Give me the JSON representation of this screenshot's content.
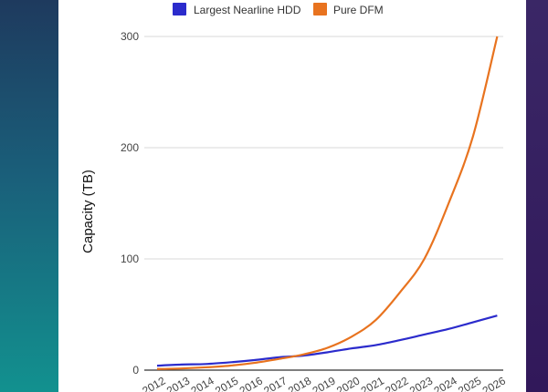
{
  "chart_data": {
    "type": "line",
    "title": "",
    "xlabel": "",
    "ylabel": "Capacity (TB)",
    "ylim": [
      0,
      300
    ],
    "yticks": [
      0,
      100,
      200,
      300
    ],
    "grid": true,
    "legend_position": "top",
    "categories": [
      "2012",
      "2013",
      "2014",
      "2015",
      "2016",
      "2017",
      "2018",
      "2019",
      "2020",
      "2021",
      "2022",
      "2023",
      "2024",
      "2025",
      "2026"
    ],
    "series": [
      {
        "name": "Largest Nearline HDD",
        "color": "#2b2bcc",
        "values": [
          4,
          5,
          5.5,
          7,
          9,
          11.5,
          13,
          16,
          19.5,
          22.5,
          27,
          32,
          37,
          43,
          49
        ]
      },
      {
        "name": "Pure DFM",
        "color": "#e8731f",
        "values": [
          1,
          1.5,
          2.5,
          4,
          6.5,
          10,
          14,
          20,
          30,
          45,
          70,
          100,
          150,
          210,
          300
        ]
      }
    ]
  }
}
